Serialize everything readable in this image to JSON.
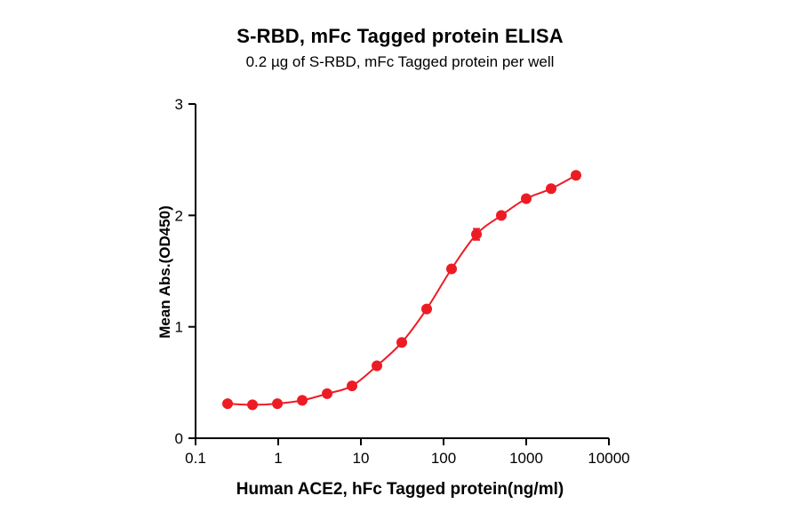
{
  "chart_data": {
    "type": "scatter",
    "title": "S-RBD, mFc Tagged protein ELISA",
    "subtitle": "0.2 µg of S-RBD, mFc Tagged protein per well",
    "xlabel": "Human ACE2, hFc Tagged protein(ng/ml)",
    "ylabel": "Mean Abs.(OD450)",
    "x_scale": "log10",
    "xlim": [
      0.1,
      10000
    ],
    "ylim": [
      0,
      3
    ],
    "x_ticks": [
      0.1,
      1,
      10,
      100,
      1000,
      10000
    ],
    "x_tick_labels": [
      "0.1",
      "1",
      "10",
      "100",
      "1000",
      "10000"
    ],
    "y_ticks": [
      0,
      1,
      2,
      3
    ],
    "y_tick_labels": [
      "0",
      "1",
      "2",
      "3"
    ],
    "grid": false,
    "legend": "none",
    "curve_style": "4PL sigmoid fit through points",
    "series": [
      {
        "color": "#ED1C24",
        "marker": "circle",
        "x": [
          0.244,
          0.488,
          0.977,
          1.953,
          3.906,
          7.813,
          15.625,
          31.25,
          62.5,
          125,
          250,
          500,
          1000,
          2000,
          4000
        ],
        "y": [
          0.31,
          0.3,
          0.31,
          0.34,
          0.4,
          0.47,
          0.65,
          0.86,
          1.16,
          1.52,
          1.83,
          2.0,
          2.15,
          2.24,
          2.36
        ],
        "y_err": [
          0,
          0,
          0,
          0,
          0,
          0,
          0,
          0,
          0,
          0,
          0.05,
          0,
          0,
          0,
          0
        ]
      }
    ]
  }
}
